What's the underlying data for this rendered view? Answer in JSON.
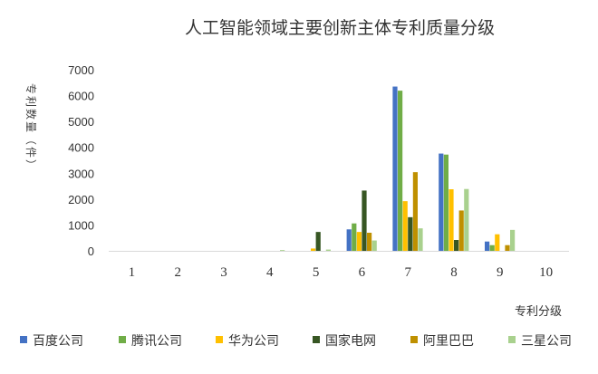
{
  "chart_data": {
    "type": "bar",
    "title": "人工智能领域主要创新主体专利质量分级",
    "xlabel": "专利分级",
    "ylabel": "专利数量（件）",
    "categories": [
      "1",
      "2",
      "3",
      "4",
      "5",
      "6",
      "7",
      "8",
      "9",
      "10"
    ],
    "ylim": [
      0,
      7000
    ],
    "yticks": [
      "0",
      "1000",
      "2000",
      "3000",
      "4000",
      "5000",
      "6000",
      "7000"
    ],
    "grid": false,
    "legend_position": "bottom",
    "series": [
      {
        "name": "百度公司",
        "color": "#4472C4",
        "values": [
          0,
          0,
          0,
          0,
          0,
          830,
          6350,
          3760,
          360,
          0
        ]
      },
      {
        "name": "腾讯公司",
        "color": "#70AD47",
        "values": [
          0,
          0,
          0,
          0,
          0,
          1060,
          6190,
          3720,
          220,
          0
        ]
      },
      {
        "name": "华为公司",
        "color": "#FFC000",
        "values": [
          0,
          0,
          0,
          0,
          90,
          730,
          1920,
          2380,
          640,
          0
        ]
      },
      {
        "name": "国家电网",
        "color": "#375623",
        "values": [
          0,
          0,
          0,
          0,
          730,
          2330,
          1300,
          420,
          0,
          0
        ]
      },
      {
        "name": "阿里巴巴",
        "color": "#BF9000",
        "values": [
          0,
          0,
          0,
          0,
          0,
          700,
          3040,
          1560,
          220,
          0
        ]
      },
      {
        "name": "三星公司",
        "color": "#A9D18E",
        "values": [
          0,
          0,
          0,
          30,
          50,
          400,
          870,
          2390,
          810,
          0
        ]
      }
    ]
  }
}
